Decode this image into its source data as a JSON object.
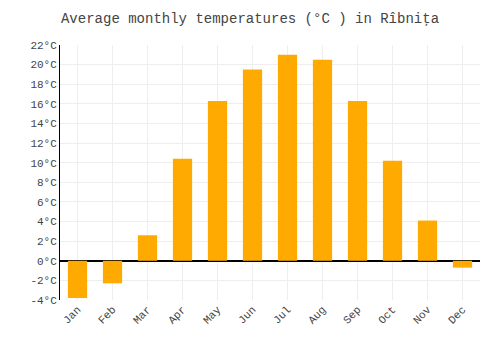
{
  "chart_data": {
    "type": "bar",
    "title": "Average monthly temperatures (°C ) in Rîbniţa",
    "categories": [
      "Jan",
      "Feb",
      "Mar",
      "Apr",
      "May",
      "Jun",
      "Jul",
      "Aug",
      "Sep",
      "Oct",
      "Nov",
      "Dec"
    ],
    "values": [
      -3.8,
      -2.3,
      2.6,
      10.4,
      16.3,
      19.5,
      21.0,
      20.5,
      16.3,
      10.2,
      4.1,
      -0.7
    ],
    "color": "#FFAA00",
    "ylim": [
      -4,
      22
    ],
    "yticks": [
      {
        "value": -4,
        "label": "-4°C"
      },
      {
        "value": -2,
        "label": "-2°C"
      },
      {
        "value": 0,
        "label": "0°C"
      },
      {
        "value": 2,
        "label": "2°C"
      },
      {
        "value": 4,
        "label": "4°C"
      },
      {
        "value": 6,
        "label": "6°C"
      },
      {
        "value": 8,
        "label": "8°C"
      },
      {
        "value": 10,
        "label": "10°C"
      },
      {
        "value": 12,
        "label": "12°C"
      },
      {
        "value": 14,
        "label": "14°C"
      },
      {
        "value": 16,
        "label": "16°C"
      },
      {
        "value": 18,
        "label": "18°C"
      },
      {
        "value": 20,
        "label": "20°C"
      },
      {
        "value": 22,
        "label": "22°C"
      }
    ],
    "grid": true
  }
}
